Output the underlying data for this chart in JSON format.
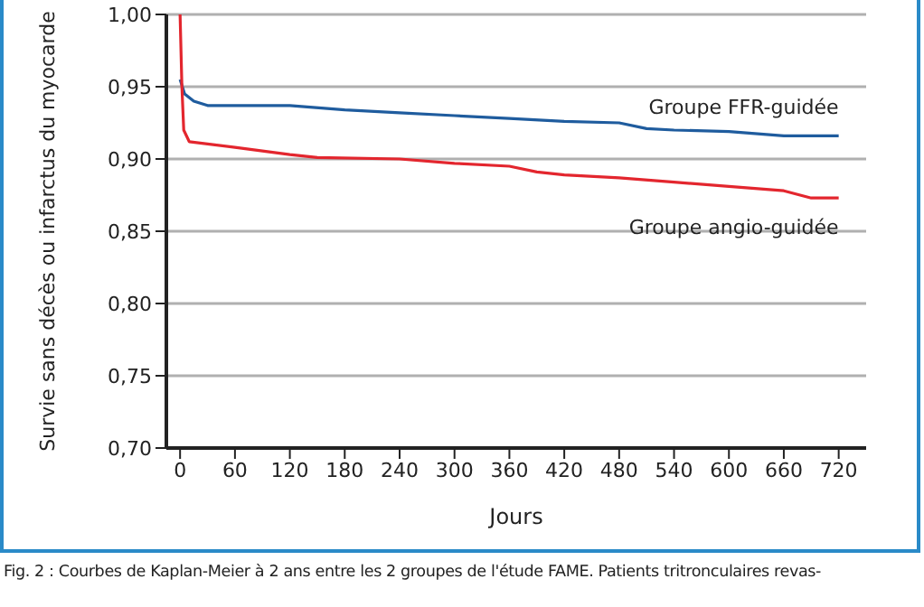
{
  "chart_data": {
    "type": "line",
    "xlabel": "Jours",
    "ylabel": "Survie sans décès ou infarctus du myocarde",
    "xlim": [
      -15,
      750
    ],
    "xticks": [
      0,
      60,
      120,
      180,
      240,
      300,
      360,
      420,
      480,
      540,
      600,
      660,
      720
    ],
    "ylim": [
      0.7,
      1.0
    ],
    "yticks": [
      {
        "value": 0.7,
        "label": "0,70"
      },
      {
        "value": 0.75,
        "label": "0,75"
      },
      {
        "value": 0.8,
        "label": "0,80"
      },
      {
        "value": 0.85,
        "label": "0,85"
      },
      {
        "value": 0.9,
        "label": "0,90"
      },
      {
        "value": 0.95,
        "label": "0,95"
      },
      {
        "value": 1.0,
        "label": "1,00"
      }
    ],
    "grid": "y",
    "marker": "none",
    "line_style": "solid",
    "series": [
      {
        "name": "Groupe FFR-guidée",
        "color": "#1f5c9e",
        "x": [
          0,
          5,
          15,
          30,
          60,
          120,
          180,
          240,
          300,
          360,
          420,
          480,
          510,
          540,
          600,
          660,
          720
        ],
        "values": [
          0.955,
          0.945,
          0.94,
          0.937,
          0.937,
          0.937,
          0.934,
          0.932,
          0.93,
          0.928,
          0.926,
          0.925,
          0.921,
          0.92,
          0.919,
          0.916,
          0.916
        ]
      },
      {
        "name": "Groupe angio-guidée",
        "color": "#e3262e",
        "x": [
          0,
          2,
          4,
          10,
          60,
          120,
          150,
          240,
          300,
          360,
          390,
          420,
          480,
          540,
          600,
          660,
          690,
          720
        ],
        "values": [
          1.0,
          0.95,
          0.92,
          0.912,
          0.908,
          0.903,
          0.901,
          0.9,
          0.897,
          0.895,
          0.891,
          0.889,
          0.887,
          0.884,
          0.881,
          0.878,
          0.873,
          0.873
        ]
      }
    ],
    "annotations": [
      "Fig. 2 : Courbes de Kaplan-Meier à 2 ans entre les 2 groupes de l'étude FAME. Patients tritronculaires revas-"
    ]
  }
}
